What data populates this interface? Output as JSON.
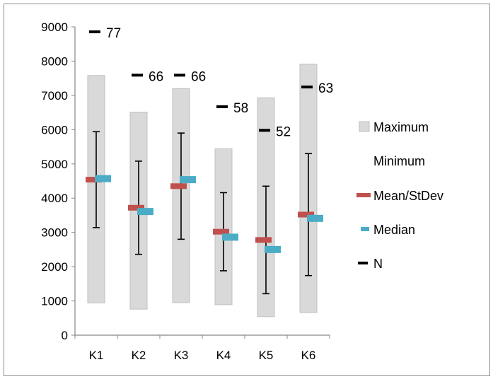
{
  "chart_data": {
    "type": "box-range",
    "categories": [
      "K1",
      "K2",
      "K3",
      "K4",
      "K5",
      "K6"
    ],
    "ylim": [
      0,
      9000
    ],
    "yticks": [
      0,
      1000,
      2000,
      3000,
      4000,
      5000,
      6000,
      7000,
      8000,
      9000
    ],
    "grid": false,
    "legend_position": "right",
    "series": [
      {
        "name": "Maximum",
        "values": [
          7580,
          6510,
          7200,
          5440,
          6930,
          7910
        ]
      },
      {
        "name": "Minimum",
        "values": [
          940,
          760,
          950,
          890,
          540,
          660
        ]
      },
      {
        "name": "Mean/StDev",
        "values": [
          4540,
          3720,
          4350,
          3020,
          2780,
          3520
        ],
        "stdev": [
          1400,
          1360,
          1550,
          1140,
          1570,
          1780
        ]
      },
      {
        "name": "Median",
        "values": [
          4570,
          3610,
          4540,
          2860,
          2500,
          3410
        ]
      },
      {
        "name": "N",
        "values": [
          77,
          66,
          66,
          58,
          52,
          63
        ]
      }
    ],
    "colors": {
      "range_fill": "#d9d9d9",
      "range_stroke": "#bfbfbf",
      "mean": "#c0504d",
      "median": "#4bacc6",
      "n_marker": "#000000",
      "axis": "#868686"
    },
    "legend": [
      {
        "label": "Maximum",
        "icon": "gray-box-icon"
      },
      {
        "label": "Minimum",
        "icon": "none"
      },
      {
        "label": "Mean/StDev",
        "icon": "red-dash-icon"
      },
      {
        "label": "Median",
        "icon": "blue-dash-icon"
      },
      {
        "label": "N",
        "icon": "black-dash-icon"
      }
    ]
  }
}
